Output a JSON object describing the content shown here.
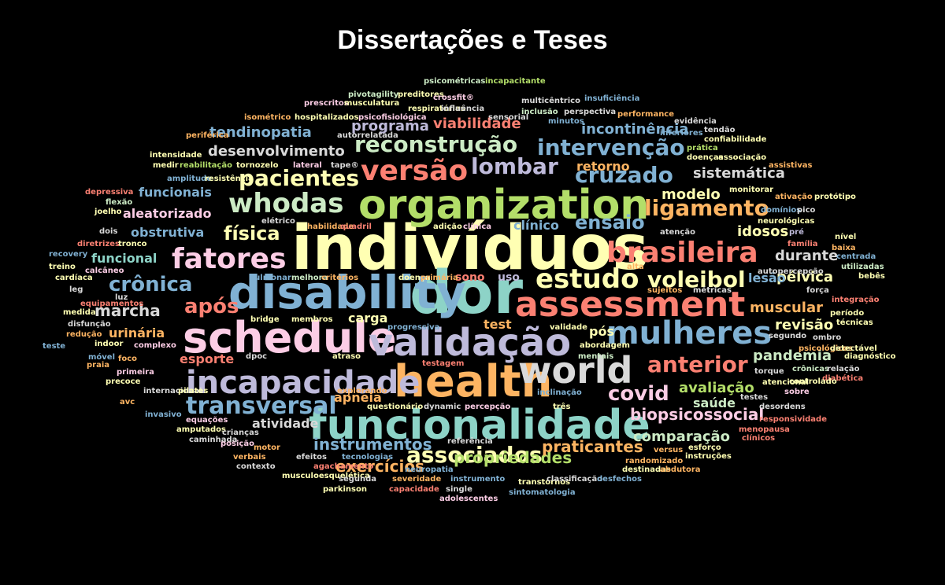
{
  "title": "Dissertações e Teses",
  "palette": [
    "#8dd3c7",
    "#ffffb3",
    "#bebada",
    "#fb8072",
    "#80b1d3",
    "#fdb462",
    "#b3de69",
    "#fccde5",
    "#d9d9d9",
    "#bc80bd",
    "#ccebc5",
    "#ffed6f"
  ],
  "words": [
    {
      "text": "indivíduos",
      "color": "#ffffb3"
    },
    {
      "text": "dor",
      "color": "#8dd3c7"
    },
    {
      "text": "disability",
      "color": "#80b1d3"
    },
    {
      "text": "organization",
      "color": "#b3de69"
    },
    {
      "text": "schedule",
      "color": "#fccde5"
    },
    {
      "text": "funcionalidade",
      "color": "#8dd3c7"
    },
    {
      "text": "assessment",
      "color": "#fb8072"
    },
    {
      "text": "validação",
      "color": "#bebada"
    },
    {
      "text": "health",
      "color": "#fdb462"
    },
    {
      "text": "world",
      "color": "#d9d9d9"
    },
    {
      "text": "incapacidade",
      "color": "#bebada"
    },
    {
      "text": "mulheres",
      "color": "#80b1d3"
    },
    {
      "text": "brasileira",
      "color": "#fb8072"
    },
    {
      "text": "fatores",
      "color": "#fccde5"
    },
    {
      "text": "whodas",
      "color": "#ccebc5"
    },
    {
      "text": "versão",
      "color": "#fb8072"
    },
    {
      "text": "estudo",
      "color": "#ffffb3"
    },
    {
      "text": "pacientes",
      "color": "#ffffb3"
    },
    {
      "text": "reconstrução",
      "color": "#ccebc5"
    },
    {
      "text": "intervenção",
      "color": "#80b1d3"
    },
    {
      "text": "lombar",
      "color": "#bebada"
    },
    {
      "text": "cruzado",
      "color": "#80b1d3"
    },
    {
      "text": "ligamento",
      "color": "#fdb462"
    },
    {
      "text": "anterior",
      "color": "#fb8072"
    },
    {
      "text": "transversal",
      "color": "#80b1d3"
    },
    {
      "text": "associados",
      "color": "#ffffb3"
    },
    {
      "text": "voleibol",
      "color": "#ffffb3"
    },
    {
      "text": "crônica",
      "color": "#80b1d3"
    },
    {
      "text": "após",
      "color": "#fb8072"
    },
    {
      "text": "covid",
      "color": "#fccde5"
    },
    {
      "text": "ensaio",
      "color": "#80b1d3"
    },
    {
      "text": "física",
      "color": "#ffffb3"
    },
    {
      "text": "marcha",
      "color": "#d9d9d9"
    },
    {
      "text": "exercícios",
      "color": "#fdb462"
    },
    {
      "text": "instrumentos",
      "color": "#80b1d3"
    },
    {
      "text": "propriedades",
      "color": "#b3de69"
    },
    {
      "text": "praticantes",
      "color": "#fdb462"
    },
    {
      "text": "biopsicossocial",
      "color": "#fccde5"
    },
    {
      "text": "comparação",
      "color": "#ccebc5"
    },
    {
      "text": "avaliação",
      "color": "#b3de69"
    },
    {
      "text": "pandemia",
      "color": "#ccebc5"
    },
    {
      "text": "pélvica",
      "color": "#ffffb3"
    },
    {
      "text": "muscular",
      "color": "#fdb462"
    },
    {
      "text": "revisão",
      "color": "#ffffb3"
    },
    {
      "text": "tendinopatia",
      "color": "#80b1d3"
    },
    {
      "text": "desenvolvimento",
      "color": "#d9d9d9"
    },
    {
      "text": "programa",
      "color": "#bebada"
    },
    {
      "text": "viabilidade",
      "color": "#fb8072"
    },
    {
      "text": "incontinência",
      "color": "#80b1d3"
    },
    {
      "text": "sistemática",
      "color": "#d9d9d9"
    },
    {
      "text": "modelo",
      "color": "#ffffb3"
    },
    {
      "text": "idosos",
      "color": "#ffffb3"
    },
    {
      "text": "durante",
      "color": "#d9d9d9"
    },
    {
      "text": "lesão",
      "color": "#80b1d3"
    },
    {
      "text": "retorno",
      "color": "#fdb462"
    },
    {
      "text": "funcionais",
      "color": "#80b1d3"
    },
    {
      "text": "aleatorizado",
      "color": "#fccde5"
    },
    {
      "text": "obstrutiva",
      "color": "#80b1d3"
    },
    {
      "text": "funcional",
      "color": "#8dd3c7"
    },
    {
      "text": "urinária",
      "color": "#fdb462"
    },
    {
      "text": "esporte",
      "color": "#fb8072"
    },
    {
      "text": "atividade",
      "color": "#d9d9d9"
    },
    {
      "text": "apneia",
      "color": "#fdb462"
    },
    {
      "text": "carga",
      "color": "#ffffb3"
    },
    {
      "text": "test",
      "color": "#fdb462"
    },
    {
      "text": "pós",
      "color": "#ffffb3"
    },
    {
      "text": "saúde",
      "color": "#ccebc5"
    },
    {
      "text": "clínico",
      "color": "#80b1d3"
    },
    {
      "text": "sono",
      "color": "#fb8072"
    },
    {
      "text": "uso",
      "color": "#bebada"
    },
    {
      "text": "alta",
      "color": "#fdb462"
    },
    {
      "text": "psicométricas",
      "color": "#ccebc5"
    },
    {
      "text": "incapacitante",
      "color": "#b3de69"
    },
    {
      "text": "pivotagility",
      "color": "#ccebc5"
    },
    {
      "text": "preditores",
      "color": "#ffffb3"
    },
    {
      "text": "crossfit®",
      "color": "#fccde5"
    },
    {
      "text": "insuficiência",
      "color": "#80b1d3"
    },
    {
      "text": "prescritos",
      "color": "#fccde5"
    },
    {
      "text": "musculatura",
      "color": "#ffffb3"
    },
    {
      "text": "respiratórias",
      "color": "#ffffb3"
    },
    {
      "text": "influência",
      "color": "#d9d9d9"
    },
    {
      "text": "multicêntrico",
      "color": "#d9d9d9"
    },
    {
      "text": "isométrico",
      "color": "#fdb462"
    },
    {
      "text": "hospitalizados",
      "color": "#ffffb3"
    },
    {
      "text": "psicofisiológica",
      "color": "#fccde5"
    },
    {
      "text": "inclusão",
      "color": "#ccebc5"
    },
    {
      "text": "perspectiva",
      "color": "#d9d9d9"
    },
    {
      "text": "performance",
      "color": "#fdb462"
    },
    {
      "text": "minutos",
      "color": "#80b1d3"
    },
    {
      "text": "evidência",
      "color": "#d9d9d9"
    },
    {
      "text": "periférica",
      "color": "#fdb462"
    },
    {
      "text": "inferiores",
      "color": "#80b1d3"
    },
    {
      "text": "tendão",
      "color": "#d9d9d9"
    },
    {
      "text": "confiabilidade",
      "color": "#ffffb3"
    },
    {
      "text": "intensidade",
      "color": "#ffffb3"
    },
    {
      "text": "autorrelatada",
      "color": "#d9d9d9"
    },
    {
      "text": "prática",
      "color": "#b3de69"
    },
    {
      "text": "medir",
      "color": "#ffffb3"
    },
    {
      "text": "reabilitação",
      "color": "#b3de69"
    },
    {
      "text": "tornozelo",
      "color": "#ffffb3"
    },
    {
      "text": "lateral",
      "color": "#fccde5"
    },
    {
      "text": "tape®",
      "color": "#d9d9d9"
    },
    {
      "text": "doenças",
      "color": "#ffffb3"
    },
    {
      "text": "associação",
      "color": "#ffffb3"
    },
    {
      "text": "assistivas",
      "color": "#fdb462"
    },
    {
      "text": "amplitude",
      "color": "#80b1d3"
    },
    {
      "text": "resistência",
      "color": "#ffffb3"
    },
    {
      "text": "monitorar",
      "color": "#ffffb3"
    },
    {
      "text": "depressiva",
      "color": "#fb8072"
    },
    {
      "text": "ativação",
      "color": "#fdb462"
    },
    {
      "text": "protótipo",
      "color": "#ffffb3"
    },
    {
      "text": "flexão",
      "color": "#ccebc5"
    },
    {
      "text": "domínios",
      "color": "#80b1d3"
    },
    {
      "text": "joelho",
      "color": "#ffffb3"
    },
    {
      "text": "pico",
      "color": "#d9d9d9"
    },
    {
      "text": "elétrico",
      "color": "#d9d9d9"
    },
    {
      "text": "neurológicas",
      "color": "#ffffb3"
    },
    {
      "text": "habilidade",
      "color": "#fdb462"
    },
    {
      "text": "quadril",
      "color": "#fb8072"
    },
    {
      "text": "adição",
      "color": "#ffffb3"
    },
    {
      "text": "clínica",
      "color": "#fccde5"
    },
    {
      "text": "atenção",
      "color": "#d9d9d9"
    },
    {
      "text": "pré",
      "color": "#bebada"
    },
    {
      "text": "dois",
      "color": "#d9d9d9"
    },
    {
      "text": "nível",
      "color": "#ffffb3"
    },
    {
      "text": "diretrizes",
      "color": "#fb8072"
    },
    {
      "text": "tronco",
      "color": "#ffffb3"
    },
    {
      "text": "baixa",
      "color": "#fdb462"
    },
    {
      "text": "recovery",
      "color": "#80b1d3"
    },
    {
      "text": "utilizadas",
      "color": "#ccebc5"
    },
    {
      "text": "treino",
      "color": "#ffffb3"
    },
    {
      "text": "calcâneo",
      "color": "#fccde5"
    },
    {
      "text": "bebês",
      "color": "#ffffb3"
    },
    {
      "text": "cardíaca",
      "color": "#ffffb3"
    },
    {
      "text": "pulmonar",
      "color": "#80b1d3"
    },
    {
      "text": "melhora",
      "color": "#ccebc5"
    },
    {
      "text": "critérios",
      "color": "#fdb462"
    },
    {
      "text": "doença",
      "color": "#ffffb3"
    },
    {
      "text": "primária",
      "color": "#fdb462"
    },
    {
      "text": "leg",
      "color": "#d9d9d9"
    },
    {
      "text": "força",
      "color": "#d9d9d9"
    },
    {
      "text": "luz",
      "color": "#d9d9d9"
    },
    {
      "text": "sujeitos",
      "color": "#fdb462"
    },
    {
      "text": "métricas",
      "color": "#d9d9d9"
    },
    {
      "text": "equipamentos",
      "color": "#fb8072"
    },
    {
      "text": "integração",
      "color": "#fb8072"
    },
    {
      "text": "medida",
      "color": "#ffffb3"
    },
    {
      "text": "período",
      "color": "#ffffb3"
    },
    {
      "text": "disfunção",
      "color": "#d9d9d9"
    },
    {
      "text": "bridge",
      "color": "#ffffb3"
    },
    {
      "text": "membros",
      "color": "#ffffb3"
    },
    {
      "text": "técnicas",
      "color": "#ffffb3"
    },
    {
      "text": "redução",
      "color": "#fdb462"
    },
    {
      "text": "indoor",
      "color": "#ffffb3"
    },
    {
      "text": "progressiva",
      "color": "#80b1d3"
    },
    {
      "text": "validade",
      "color": "#ffffb3"
    },
    {
      "text": "segundo",
      "color": "#d9d9d9"
    },
    {
      "text": "ombro",
      "color": "#d9d9d9"
    },
    {
      "text": "teste",
      "color": "#80b1d3"
    },
    {
      "text": "complexo",
      "color": "#fccde5"
    },
    {
      "text": "abordagem",
      "color": "#ffffb3"
    },
    {
      "text": "psicológicos",
      "color": "#fdb462"
    },
    {
      "text": "detectável",
      "color": "#ffffb3"
    },
    {
      "text": "móvel",
      "color": "#80b1d3"
    },
    {
      "text": "dpoc",
      "color": "#d9d9d9"
    },
    {
      "text": "atraso",
      "color": "#ffffb3"
    },
    {
      "text": "mentais",
      "color": "#ccebc5"
    },
    {
      "text": "diagnóstico",
      "color": "#ffffb3"
    },
    {
      "text": "praia",
      "color": "#fdb462"
    },
    {
      "text": "foco",
      "color": "#fdb462"
    },
    {
      "text": "testagem",
      "color": "#fb8072"
    },
    {
      "text": "torque",
      "color": "#d9d9d9"
    },
    {
      "text": "crônicas",
      "color": "#ccebc5"
    },
    {
      "text": "relação",
      "color": "#d9d9d9"
    },
    {
      "text": "primeira",
      "color": "#fccde5"
    },
    {
      "text": "precoce",
      "color": "#ffffb3"
    },
    {
      "text": "diabética",
      "color": "#fb8072"
    },
    {
      "text": "atencional",
      "color": "#ffffb3"
    },
    {
      "text": "internacional",
      "color": "#d9d9d9"
    },
    {
      "text": "pilates",
      "color": "#ffffb3"
    },
    {
      "text": "explorando",
      "color": "#fdb462"
    },
    {
      "text": "inclinação",
      "color": "#80b1d3"
    },
    {
      "text": "sobre",
      "color": "#fccde5"
    },
    {
      "text": "avc",
      "color": "#fdb462"
    },
    {
      "text": "questionário",
      "color": "#ffffb3"
    },
    {
      "text": "dynamic",
      "color": "#d9d9d9"
    },
    {
      "text": "percepção",
      "color": "#fccde5"
    },
    {
      "text": "três",
      "color": "#ffffb3"
    },
    {
      "text": "testes",
      "color": "#d9d9d9"
    },
    {
      "text": "desordens",
      "color": "#d9d9d9"
    },
    {
      "text": "invasivo",
      "color": "#80b1d3"
    },
    {
      "text": "equações",
      "color": "#fccde5"
    },
    {
      "text": "amputados",
      "color": "#ffffb3"
    },
    {
      "text": "crianças",
      "color": "#d9d9d9"
    },
    {
      "text": "referência",
      "color": "#d9d9d9"
    },
    {
      "text": "menopausa",
      "color": "#fb8072"
    },
    {
      "text": "caminhada",
      "color": "#d9d9d9"
    },
    {
      "text": "posição",
      "color": "#fccde5"
    },
    {
      "text": "motor",
      "color": "#fdb462"
    },
    {
      "text": "versus",
      "color": "#fdb462"
    },
    {
      "text": "esforço",
      "color": "#ffffb3"
    },
    {
      "text": "clínicos",
      "color": "#fb8072"
    },
    {
      "text": "verbais",
      "color": "#fdb462"
    },
    {
      "text": "efeitos",
      "color": "#d9d9d9"
    },
    {
      "text": "tecnologias",
      "color": "#80b1d3"
    },
    {
      "text": "randomizado",
      "color": "#fdb462"
    },
    {
      "text": "instruções",
      "color": "#ffffb3"
    },
    {
      "text": "contexto",
      "color": "#d9d9d9"
    },
    {
      "text": "agachamento",
      "color": "#fb8072"
    },
    {
      "text": "neuropatia",
      "color": "#80b1d3"
    },
    {
      "text": "destinadas",
      "color": "#ffffb3"
    },
    {
      "text": "abdutora",
      "color": "#fdb462"
    },
    {
      "text": "musculoesquelética",
      "color": "#ffffb3"
    },
    {
      "text": "segunda",
      "color": "#d9d9d9"
    },
    {
      "text": "severidade",
      "color": "#fdb462"
    },
    {
      "text": "instrumento",
      "color": "#80b1d3"
    },
    {
      "text": "transtornos",
      "color": "#ffffb3"
    },
    {
      "text": "classificação",
      "color": "#d9d9d9"
    },
    {
      "text": "desfechos",
      "color": "#80b1d3"
    },
    {
      "text": "parkinson",
      "color": "#ffffb3"
    },
    {
      "text": "capacidade",
      "color": "#fb8072"
    },
    {
      "text": "single",
      "color": "#d9d9d9"
    },
    {
      "text": "sintomatologia",
      "color": "#80b1d3"
    },
    {
      "text": "adolescentes",
      "color": "#fccde5"
    },
    {
      "text": "controlado",
      "color": "#ffffb3"
    },
    {
      "text": "responsividade",
      "color": "#fb8072"
    },
    {
      "text": "autopercepção",
      "color": "#d9d9d9"
    },
    {
      "text": "família",
      "color": "#fb8072"
    },
    {
      "text": "centrada",
      "color": "#80b1d3"
    },
    {
      "text": "sensorial",
      "color": "#d9d9d9"
    },
    {
      "text": "principais",
      "color": "#80b1d3"
    },
    {
      "text": "patelar",
      "color": "#fdb462"
    },
    {
      "text": "tecnologia",
      "color": "#ffffb3"
    }
  ]
}
